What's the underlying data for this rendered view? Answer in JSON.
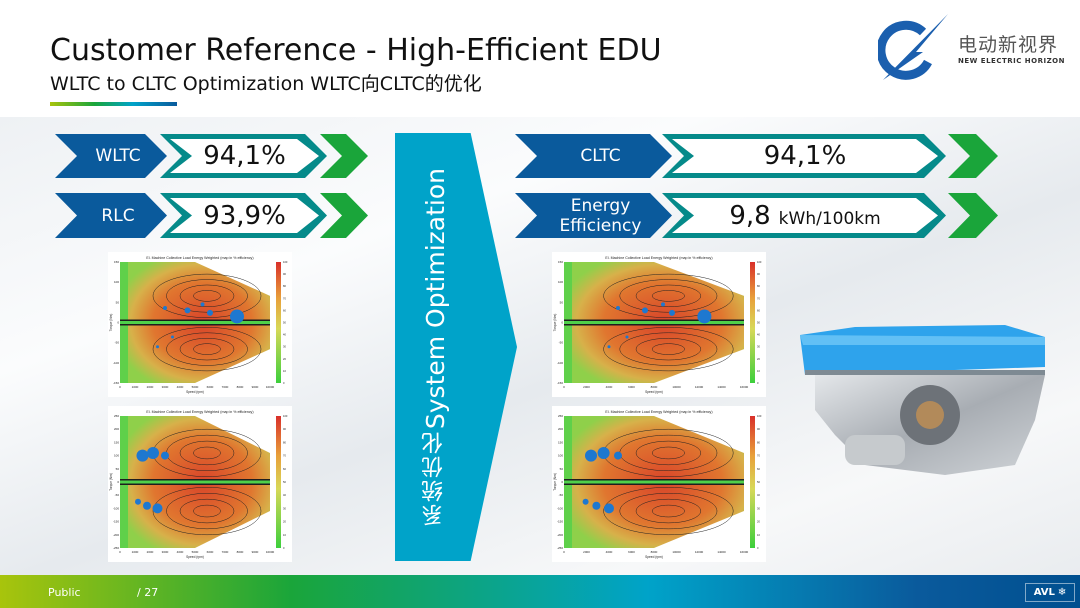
{
  "header": {
    "title": "Customer Reference - High-Efficient EDU",
    "subtitle": "WLTC to CLTC Optimization WLTC向CLTC的优化"
  },
  "logo": {
    "cn": "电动新视界",
    "en": "NEW ELECTRIC HORIZON"
  },
  "left_metrics": [
    {
      "label": "WLTC",
      "value": "94,1%"
    },
    {
      "label": "RLC",
      "value": "93,9%"
    }
  ],
  "right_metrics": [
    {
      "label": "CLTC",
      "value": "94,1%"
    },
    {
      "label": "Energy Efficiency",
      "value": "9,8",
      "unit": "kWh/100km"
    }
  ],
  "center_arrow": {
    "en": "System Optimization",
    "cn": "系统优化"
  },
  "maps": [
    {
      "title": "El. Machine Collective Load Energy Weighted (map in % efficiency)",
      "xlabel": "Speed (rpm)",
      "ylabel": "Torque (Nm)",
      "xticks": [
        "0",
        "1000",
        "2000",
        "3000",
        "4000",
        "5000",
        "6000",
        "7000",
        "8000",
        "9000",
        "10000"
      ],
      "yticks": [
        "150",
        "100",
        "50",
        "0",
        "-50",
        "-100",
        "-150"
      ]
    },
    {
      "title": "El. Machine Collective Load Energy Weighted (map in % efficiency)",
      "xlabel": "Speed (rpm)",
      "ylabel": "Torque (Nm)",
      "xticks": [
        "0",
        "1000",
        "2000",
        "3000",
        "4000",
        "5000",
        "6000",
        "7000",
        "8000",
        "9000",
        "10000"
      ],
      "yticks": [
        "250",
        "200",
        "150",
        "100",
        "50",
        "0",
        "-50",
        "-100",
        "-150",
        "-200",
        "-250"
      ]
    },
    {
      "title": "El. Machine Collective Load Energy Weighted (map in % efficiency)",
      "xlabel": "Speed (rpm)",
      "ylabel": "Torque (Nm)",
      "xticks": [
        "0",
        "2000",
        "4000",
        "6000",
        "8000",
        "10000",
        "12000",
        "14000",
        "16000"
      ],
      "yticks": [
        "150",
        "100",
        "50",
        "0",
        "-50",
        "-100",
        "-150"
      ]
    },
    {
      "title": "El. Machine Collective Load Energy Weighted (map in % efficiency)",
      "xlabel": "Speed (rpm)",
      "ylabel": "Torque (Nm)",
      "xticks": [
        "0",
        "2000",
        "4000",
        "6000",
        "8000",
        "10000",
        "12000",
        "14000",
        "16000"
      ],
      "yticks": [
        "250",
        "200",
        "150",
        "100",
        "50",
        "0",
        "-50",
        "-100",
        "-150",
        "-200",
        "-250"
      ]
    }
  ],
  "colorbar_ticks": [
    "100",
    "90",
    "80",
    "70",
    "60",
    "50",
    "40",
    "30",
    "20",
    "10",
    "0"
  ],
  "footer": {
    "classification": "Public",
    "page": "/ 27",
    "brand": "AVL"
  },
  "colors": {
    "blue": "#0a5a9c",
    "teal": "#058a8a",
    "green": "#1aa53a",
    "cyan": "#00a3c9"
  }
}
